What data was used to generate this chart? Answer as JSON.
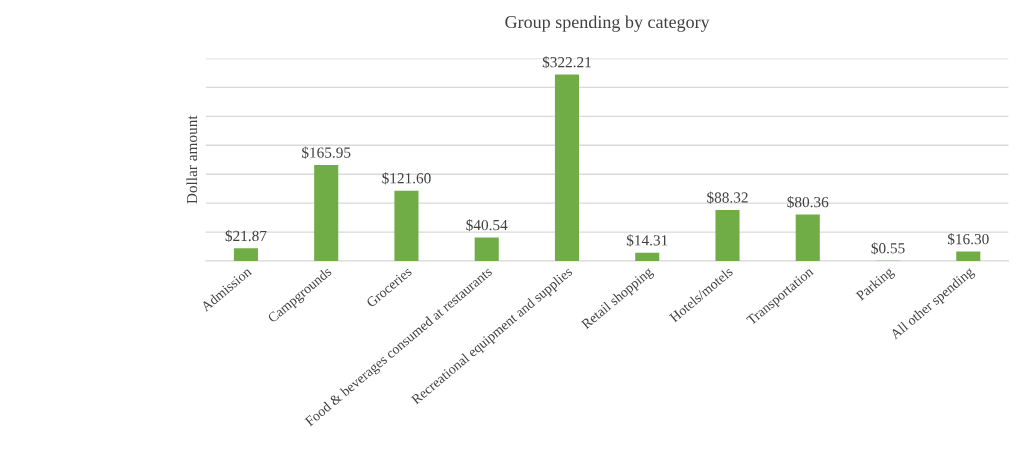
{
  "chart_data": {
    "type": "bar",
    "title": "Group spending by category",
    "ylabel": "Dollar amount",
    "categories": [
      "Admission",
      "Campgrounds",
      "Groceries",
      "Food & beverages consumed at restaurants",
      "Recreational equipment and supplies",
      "Retail shopping",
      "Hotels/motels",
      "Transportation",
      "Parking",
      "All other spending"
    ],
    "values": [
      21.87,
      165.95,
      121.6,
      40.54,
      322.21,
      14.31,
      88.32,
      80.36,
      0.55,
      16.3
    ],
    "value_labels": [
      "$21.87",
      "$165.95",
      "$121.60",
      "$40.54",
      "$322.21",
      "$14.31",
      "$88.32",
      "$80.36",
      "$0.55",
      "$16.30"
    ],
    "color": "#70ad47",
    "ylim": [
      0,
      350
    ],
    "yticks": [
      {
        "value": 0,
        "label": null
      },
      {
        "value": 50,
        "label": null
      },
      {
        "value": 100,
        "label": null
      },
      {
        "value": 150,
        "label": null
      },
      {
        "value": 200,
        "label": null
      },
      {
        "value": 250,
        "label": null
      },
      {
        "value": 300,
        "label": null
      },
      {
        "value": 350,
        "label": null
      }
    ],
    "tick_labels": "x",
    "grid": "y",
    "legend": false
  }
}
